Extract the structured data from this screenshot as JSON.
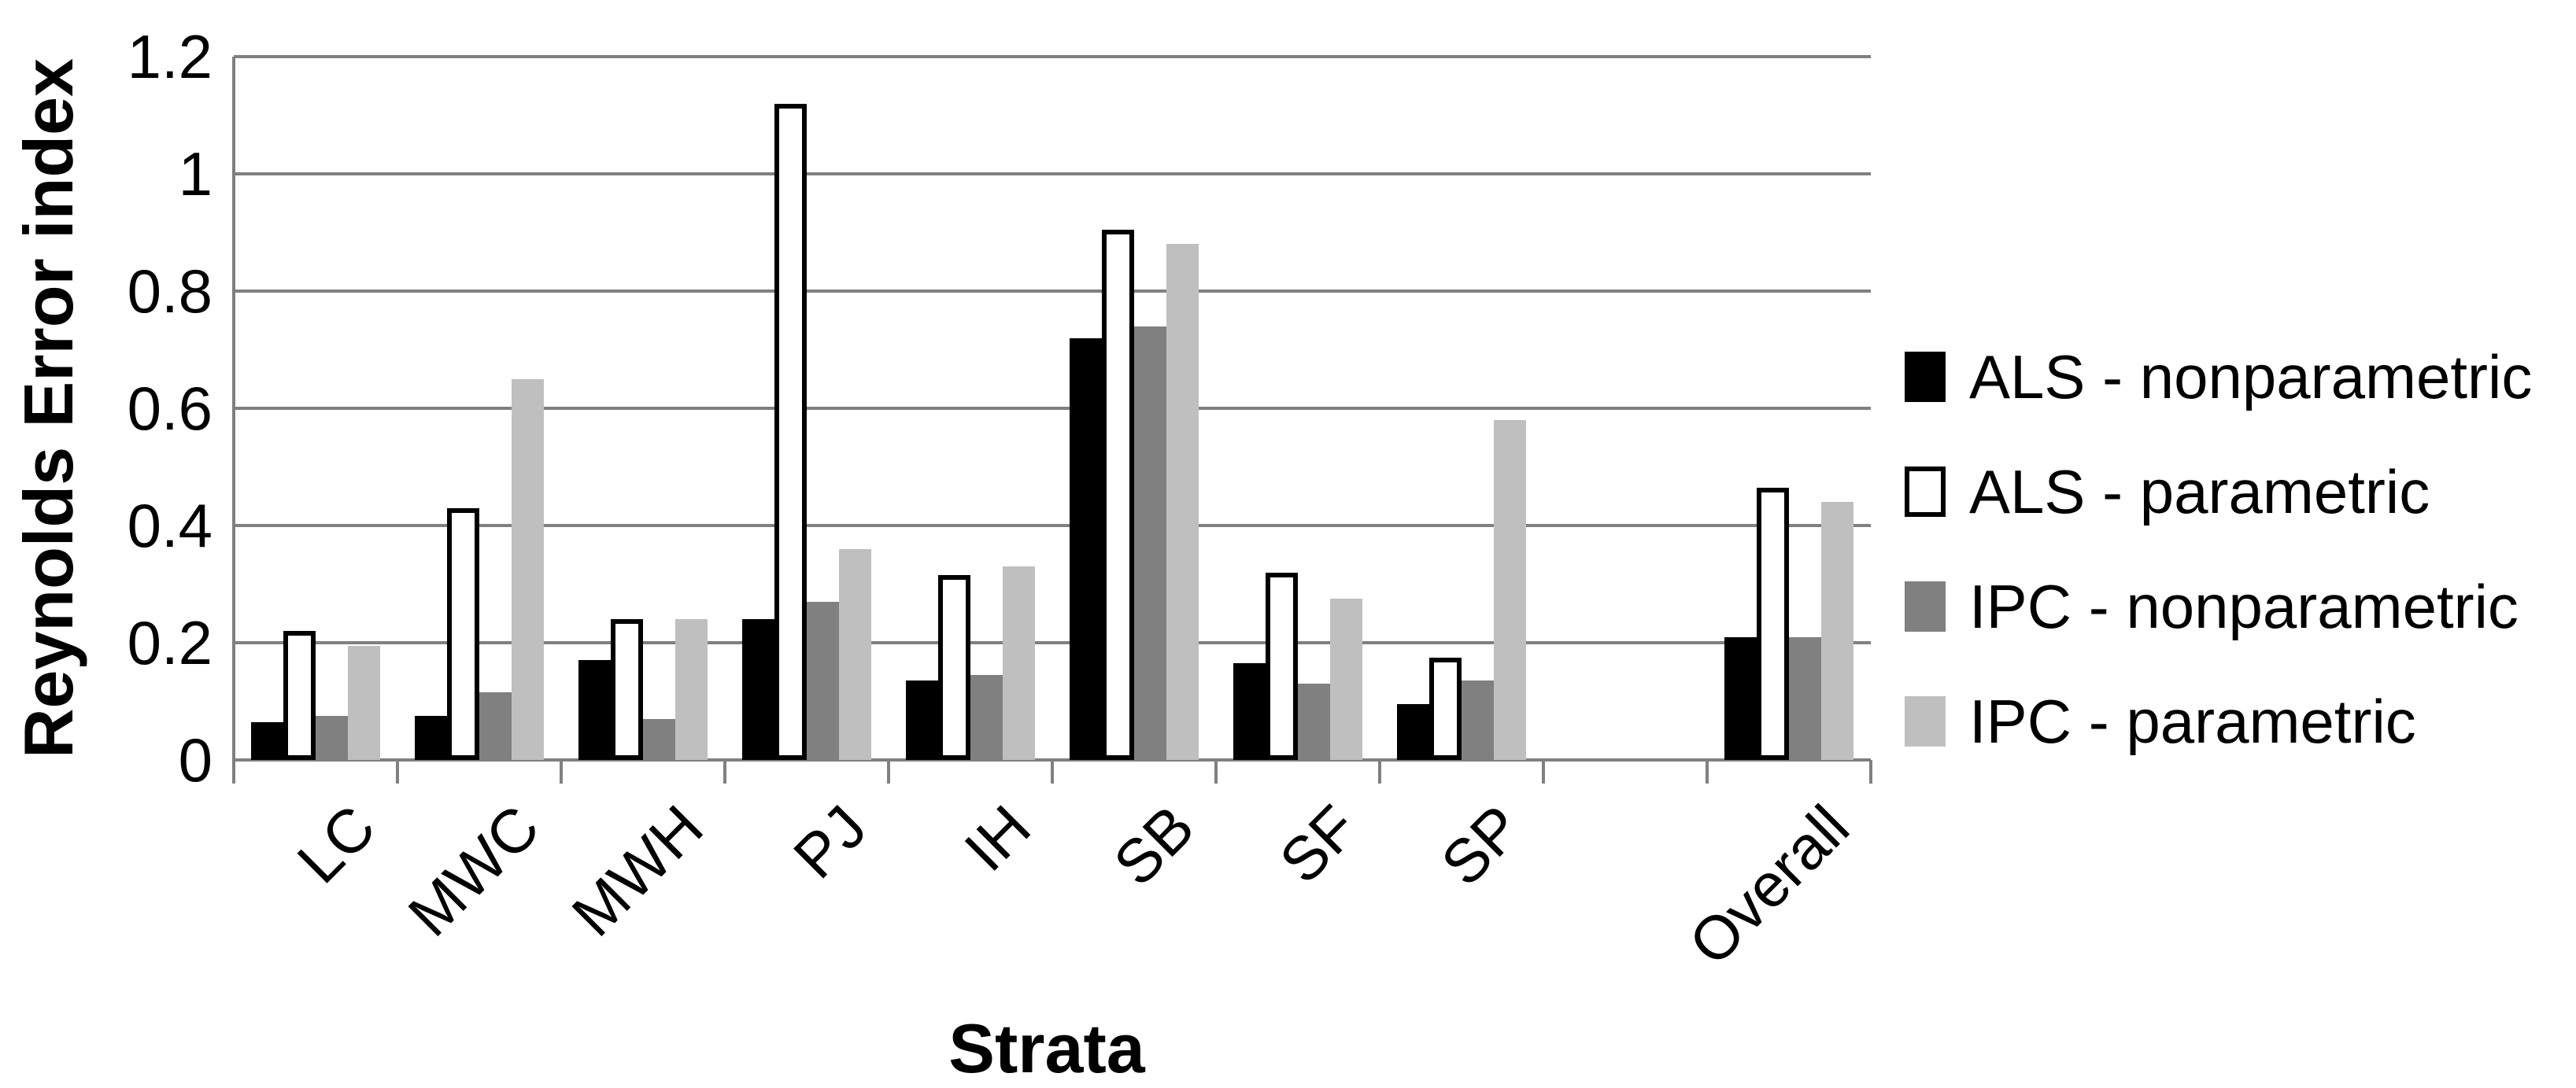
{
  "chart_data": {
    "type": "bar",
    "title": "",
    "xlabel": "Strata",
    "ylabel": "Reynolds Error index",
    "ylim": [
      0,
      1.2
    ],
    "yticks": [
      0,
      0.2,
      0.4,
      0.6,
      0.8,
      1,
      1.2
    ],
    "ytick_labels": [
      "0",
      "0.2",
      "0.4",
      "0.6",
      "0.8",
      "1",
      "1.2"
    ],
    "grid": true,
    "legend_position": "right",
    "categories": [
      "LC",
      "MWC",
      "MWH",
      "PJ",
      "IH",
      "SB",
      "SF",
      "SP",
      "",
      "Overall"
    ],
    "series": [
      {
        "name": "ALS - nonparametric",
        "color": "#000000",
        "values": [
          0.065,
          0.075,
          0.17,
          0.24,
          0.135,
          0.72,
          0.165,
          0.095,
          null,
          0.21
        ]
      },
      {
        "name": "ALS - parametric",
        "color": "#ffffff",
        "border": "#000000",
        "values": [
          0.22,
          0.43,
          0.24,
          1.12,
          0.315,
          0.905,
          0.32,
          0.175,
          null,
          0.465
        ]
      },
      {
        "name": "IPC - nonparametric",
        "color": "#808080",
        "values": [
          0.075,
          0.115,
          0.07,
          0.27,
          0.145,
          0.74,
          0.13,
          0.135,
          null,
          0.21
        ]
      },
      {
        "name": "IPC - parametric",
        "color": "#bfbfbf",
        "values": [
          0.195,
          0.65,
          0.24,
          0.36,
          0.33,
          0.88,
          0.275,
          0.58,
          null,
          0.44
        ]
      }
    ],
    "colors": {
      "grid": "#808080",
      "axis": "#808080",
      "text": "#000000",
      "background": "#ffffff"
    }
  }
}
